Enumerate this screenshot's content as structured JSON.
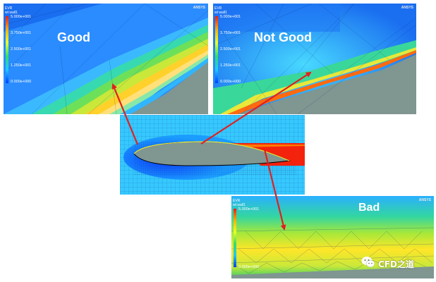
{
  "panels": {
    "good": {
      "label": "Good"
    },
    "not_good": {
      "label": "Not Good"
    },
    "bad": {
      "label": "Bad"
    }
  },
  "legend": {
    "title_line1": "EVR",
    "title_line2": "wt wall1",
    "ticks": [
      "5.000e+001",
      "3.750e+001",
      "2.500e+001",
      "1.250e+001",
      "0.000e+000"
    ]
  },
  "brand": "ANSYS",
  "watermark": {
    "text": "CFD之道",
    "icon": "wechat-icon"
  },
  "colors": {
    "arrow": "#e02020",
    "surface": "#7f9691",
    "low": "#0a3cff",
    "mid": "#29c47a",
    "high": "#ff1a00"
  }
}
